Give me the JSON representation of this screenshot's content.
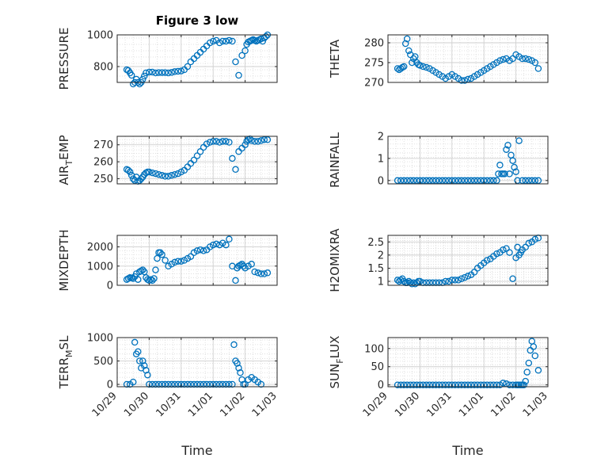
{
  "figure": {
    "title": "Figure 3 low",
    "xlabel": "Time",
    "marker_color": "#0072BD"
  },
  "x_ticks": [
    "10/29",
    "10/30",
    "10/31",
    "11/01",
    "11/02",
    "11/03"
  ],
  "chart_data": [
    {
      "type": "scatter",
      "title": "Figure 3 low",
      "ylabel": "PRESSURE",
      "xlabel": "",
      "ylim": [
        700,
        1000
      ],
      "yticks": [
        "800",
        "1000"
      ],
      "ytick_values": [
        800,
        1000
      ],
      "grid": true,
      "x": [
        0.3,
        0.35,
        0.4,
        0.45,
        0.5,
        0.55,
        0.6,
        0.65,
        0.7,
        0.75,
        0.8,
        0.85,
        0.9,
        1.0,
        1.1,
        1.2,
        1.3,
        1.4,
        1.5,
        1.6,
        1.7,
        1.8,
        1.9,
        2.0,
        2.1,
        2.2,
        2.3,
        2.4,
        2.5,
        2.6,
        2.7,
        2.8,
        2.9,
        3.0,
        3.1,
        3.2,
        3.3,
        3.4,
        3.5,
        3.6,
        3.7,
        3.8,
        3.9,
        4.0,
        4.05,
        4.1,
        4.15,
        4.2,
        4.25,
        4.3,
        4.35,
        4.4,
        4.45,
        4.5,
        4.55,
        4.6,
        4.65,
        4.7
      ],
      "y": [
        780,
        775,
        760,
        745,
        690,
        700,
        720,
        700,
        690,
        700,
        720,
        740,
        760,
        765,
        765,
        760,
        762,
        762,
        762,
        760,
        763,
        768,
        770,
        772,
        780,
        800,
        830,
        850,
        870,
        890,
        910,
        930,
        950,
        960,
        965,
        950,
        960,
        960,
        965,
        960,
        830,
        745,
        870,
        900,
        940,
        955,
        960,
        965,
        970,
        965,
        960,
        965,
        970,
        975,
        960,
        980,
        990,
        1000
      ]
    },
    {
      "type": "scatter",
      "title": "",
      "ylabel": "THETA",
      "xlabel": "",
      "ylim": [
        270,
        282
      ],
      "yticks": [
        "270",
        "275",
        "280"
      ],
      "ytick_values": [
        270,
        275,
        280
      ],
      "grid": true,
      "x": [
        0.3,
        0.35,
        0.4,
        0.45,
        0.5,
        0.55,
        0.6,
        0.65,
        0.7,
        0.75,
        0.8,
        0.85,
        0.9,
        0.95,
        1.0,
        1.1,
        1.2,
        1.3,
        1.4,
        1.5,
        1.6,
        1.7,
        1.8,
        1.9,
        2.0,
        2.1,
        2.2,
        2.3,
        2.4,
        2.5,
        2.6,
        2.7,
        2.8,
        2.9,
        3.0,
        3.1,
        3.2,
        3.3,
        3.4,
        3.5,
        3.6,
        3.7,
        3.8,
        3.9,
        4.0,
        4.1,
        4.2,
        4.3,
        4.4,
        4.5,
        4.6,
        4.7
      ],
      "y": [
        273.5,
        273.2,
        273.5,
        273.8,
        274,
        279.8,
        281,
        278,
        277,
        275,
        276,
        276.5,
        275,
        274.5,
        274.3,
        274,
        273.8,
        273.5,
        273,
        272.5,
        272,
        271.5,
        271,
        271.5,
        272,
        271.5,
        271,
        270.5,
        270.5,
        270.8,
        271,
        271.5,
        272,
        272.5,
        273,
        273.5,
        274,
        274.5,
        275,
        275.5,
        275.8,
        276,
        275.5,
        276,
        277,
        276.5,
        276,
        276,
        275.8,
        275.5,
        275,
        273.5
      ]
    },
    {
      "type": "scatter",
      "title": "",
      "ylabel": "AIR_TEMP",
      "xlabel": "",
      "ylim": [
        247,
        275
      ],
      "yticks": [
        "250",
        "260",
        "270"
      ],
      "ytick_values": [
        250,
        260,
        270
      ],
      "grid": true,
      "x": [
        0.3,
        0.35,
        0.4,
        0.45,
        0.5,
        0.55,
        0.6,
        0.65,
        0.7,
        0.75,
        0.8,
        0.85,
        0.9,
        0.95,
        1.0,
        1.1,
        1.2,
        1.3,
        1.4,
        1.5,
        1.6,
        1.7,
        1.8,
        1.9,
        2.0,
        2.1,
        2.2,
        2.3,
        2.4,
        2.5,
        2.6,
        2.7,
        2.8,
        2.9,
        3.0,
        3.1,
        3.2,
        3.3,
        3.4,
        3.5,
        3.6,
        3.7,
        3.8,
        3.9,
        4.0,
        4.05,
        4.1,
        4.15,
        4.2,
        4.3,
        4.4,
        4.5,
        4.6,
        4.7
      ],
      "y": [
        255.5,
        255,
        254,
        252,
        250,
        249,
        251,
        248.5,
        249,
        250,
        251,
        252.5,
        253.5,
        254,
        254,
        253.5,
        253,
        252.5,
        252,
        251.5,
        251.5,
        252,
        252.5,
        253,
        254,
        255,
        257,
        259,
        261,
        263.5,
        266,
        268.5,
        270.5,
        271.5,
        272,
        272,
        271.5,
        272,
        272,
        271.5,
        262,
        255.5,
        266,
        268,
        270,
        272,
        273,
        273.5,
        272.5,
        272,
        272,
        272.5,
        273,
        273
      ]
    },
    {
      "type": "scatter",
      "title": "",
      "ylabel": "RAINFALL",
      "xlabel": "",
      "ylim": [
        -0.15,
        2
      ],
      "yticks": [
        "0",
        "1",
        "2"
      ],
      "ytick_values": [
        0,
        1,
        2
      ],
      "grid": true,
      "x": [
        0.3,
        0.4,
        0.5,
        0.6,
        0.7,
        0.8,
        0.9,
        1.0,
        1.1,
        1.2,
        1.3,
        1.4,
        1.5,
        1.6,
        1.7,
        1.8,
        1.9,
        2.0,
        2.1,
        2.2,
        2.3,
        2.4,
        2.5,
        2.6,
        2.7,
        2.8,
        2.9,
        3.0,
        3.1,
        3.2,
        3.3,
        3.4,
        3.45,
        3.5,
        3.55,
        3.6,
        3.65,
        3.7,
        3.75,
        3.8,
        3.85,
        3.9,
        3.95,
        4.0,
        4.05,
        4.1,
        4.2,
        4.3,
        4.4,
        4.5,
        4.6,
        4.7
      ],
      "y": [
        0,
        0,
        0,
        0,
        0,
        0,
        0,
        0,
        0,
        0,
        0,
        0,
        0,
        0,
        0,
        0,
        0,
        0,
        0,
        0,
        0,
        0,
        0,
        0,
        0,
        0,
        0,
        0,
        0,
        0,
        0,
        0,
        0.3,
        0.7,
        0.3,
        0.3,
        0.3,
        1.4,
        1.6,
        0.3,
        1.15,
        0.9,
        0.6,
        0.4,
        0,
        1.8,
        0,
        0,
        0,
        0,
        0,
        0
      ]
    },
    {
      "type": "scatter",
      "title": "",
      "ylabel": "MIXDEPTH",
      "xlabel": "",
      "ylim": [
        0,
        2600
      ],
      "yticks": [
        "0",
        "1000",
        "2000"
      ],
      "ytick_values": [
        0,
        1000,
        2000
      ],
      "grid": true,
      "x": [
        0.3,
        0.35,
        0.4,
        0.45,
        0.5,
        0.55,
        0.6,
        0.65,
        0.7,
        0.75,
        0.8,
        0.85,
        0.9,
        0.95,
        1.0,
        1.05,
        1.1,
        1.15,
        1.2,
        1.25,
        1.3,
        1.35,
        1.4,
        1.5,
        1.6,
        1.7,
        1.8,
        1.9,
        2.0,
        2.1,
        2.2,
        2.3,
        2.4,
        2.5,
        2.6,
        2.7,
        2.8,
        2.9,
        3.0,
        3.1,
        3.2,
        3.3,
        3.4,
        3.5,
        3.6,
        3.7,
        3.75,
        3.8,
        3.85,
        3.9,
        3.95,
        4.0,
        4.1,
        4.2,
        4.3,
        4.4,
        4.5,
        4.6,
        4.7
      ],
      "y": [
        300,
        350,
        400,
        380,
        350,
        450,
        600,
        300,
        700,
        750,
        800,
        700,
        400,
        300,
        250,
        300,
        250,
        350,
        800,
        1400,
        1700,
        1700,
        1600,
        1300,
        1000,
        1100,
        1200,
        1250,
        1250,
        1300,
        1400,
        1500,
        1700,
        1800,
        1850,
        1800,
        1850,
        2000,
        2100,
        2150,
        2100,
        2200,
        2100,
        2400,
        1000,
        250,
        900,
        1000,
        1050,
        1100,
        1000,
        900,
        1000,
        1100,
        700,
        650,
        600,
        600,
        650
      ]
    },
    {
      "type": "scatter",
      "title": "",
      "ylabel": "H2OMIXRA",
      "xlabel": "",
      "ylim": [
        0.85,
        2.75
      ],
      "yticks": [
        "1",
        "1.5",
        "2",
        "2.5"
      ],
      "ytick_values": [
        1,
        1.5,
        2,
        2.5
      ],
      "grid": true,
      "x": [
        0.3,
        0.35,
        0.4,
        0.45,
        0.5,
        0.55,
        0.6,
        0.65,
        0.7,
        0.75,
        0.8,
        0.85,
        0.9,
        0.95,
        1.0,
        1.1,
        1.2,
        1.3,
        1.4,
        1.5,
        1.6,
        1.7,
        1.8,
        1.9,
        2.0,
        2.1,
        2.2,
        2.3,
        2.4,
        2.5,
        2.6,
        2.7,
        2.8,
        2.9,
        3.0,
        3.1,
        3.2,
        3.3,
        3.4,
        3.5,
        3.6,
        3.7,
        3.8,
        3.9,
        4.0,
        4.05,
        4.1,
        4.15,
        4.2,
        4.3,
        4.4,
        4.5,
        4.6,
        4.7
      ],
      "y": [
        1.05,
        1.0,
        1.05,
        1.1,
        1.0,
        0.95,
        0.95,
        1.0,
        0.95,
        0.9,
        0.95,
        0.9,
        0.95,
        1.0,
        1.0,
        0.95,
        0.95,
        0.95,
        0.95,
        0.95,
        0.95,
        0.95,
        1.0,
        1.0,
        1.05,
        1.05,
        1.05,
        1.1,
        1.15,
        1.2,
        1.25,
        1.35,
        1.5,
        1.6,
        1.7,
        1.8,
        1.85,
        1.95,
        2.05,
        2.1,
        2.2,
        2.25,
        2.1,
        1.1,
        1.9,
        2.3,
        2.0,
        2.1,
        2.2,
        2.3,
        2.45,
        2.5,
        2.6,
        2.65
      ]
    },
    {
      "type": "scatter",
      "title": "",
      "ylabel": "TERR_MSL",
      "xlabel": "Time",
      "ylim": [
        -50,
        1000
      ],
      "yticks": [
        "0",
        "500",
        "1000"
      ],
      "ytick_values": [
        0,
        500,
        1000
      ],
      "grid": true,
      "x": [
        0.3,
        0.4,
        0.5,
        0.55,
        0.6,
        0.65,
        0.7,
        0.75,
        0.8,
        0.85,
        0.9,
        0.95,
        1.0,
        1.1,
        1.2,
        1.3,
        1.4,
        1.5,
        1.6,
        1.7,
        1.8,
        1.9,
        2.0,
        2.1,
        2.2,
        2.3,
        2.4,
        2.5,
        2.6,
        2.7,
        2.8,
        2.9,
        3.0,
        3.1,
        3.2,
        3.3,
        3.4,
        3.5,
        3.6,
        3.65,
        3.7,
        3.75,
        3.8,
        3.85,
        3.9,
        3.95,
        4.0,
        4.1,
        4.2,
        4.3,
        4.4,
        4.5
      ],
      "y": [
        0,
        0,
        50,
        900,
        650,
        700,
        500,
        350,
        500,
        400,
        300,
        200,
        0,
        0,
        0,
        0,
        0,
        0,
        0,
        0,
        0,
        0,
        0,
        0,
        0,
        0,
        0,
        0,
        0,
        0,
        0,
        0,
        0,
        0,
        0,
        0,
        0,
        0,
        0,
        850,
        500,
        450,
        350,
        250,
        100,
        0,
        0,
        100,
        150,
        100,
        50,
        0
      ]
    },
    {
      "type": "scatter",
      "title": "",
      "ylabel": "SUN_FLUX",
      "xlabel": "Time",
      "ylim": [
        -5,
        130
      ],
      "yticks": [
        "0",
        "50",
        "100"
      ],
      "ytick_values": [
        0,
        50,
        100
      ],
      "grid": true,
      "x": [
        0.3,
        0.4,
        0.5,
        0.6,
        0.7,
        0.8,
        0.9,
        1.0,
        1.1,
        1.2,
        1.3,
        1.4,
        1.5,
        1.6,
        1.7,
        1.8,
        1.9,
        2.0,
        2.1,
        2.2,
        2.3,
        2.4,
        2.5,
        2.6,
        2.7,
        2.8,
        2.9,
        3.0,
        3.1,
        3.2,
        3.3,
        3.4,
        3.5,
        3.6,
        3.7,
        3.8,
        3.9,
        4.0,
        4.05,
        4.1,
        4.15,
        4.2,
        4.25,
        4.3,
        4.35,
        4.4,
        4.45,
        4.5,
        4.55,
        4.6,
        4.7
      ],
      "y": [
        0,
        0,
        0,
        0,
        0,
        0,
        0,
        0,
        0,
        0,
        0,
        0,
        0,
        0,
        0,
        0,
        0,
        0,
        0,
        0,
        0,
        0,
        0,
        0,
        0,
        0,
        0,
        0,
        0,
        0,
        0,
        0,
        0,
        5,
        3,
        0,
        0,
        0,
        0,
        0,
        0,
        0,
        0,
        10,
        35,
        60,
        95,
        120,
        105,
        80,
        40
      ]
    }
  ]
}
